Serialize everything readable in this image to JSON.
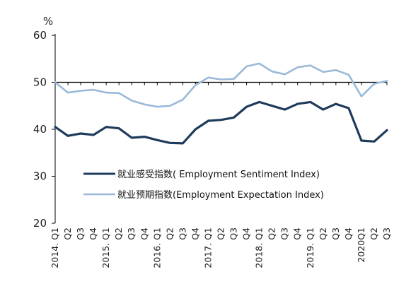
{
  "chart_data": {
    "type": "line",
    "ylabel": "%",
    "ylim": [
      20,
      60
    ],
    "yticks": [
      20,
      30,
      40,
      50,
      60
    ],
    "reference_line": 50,
    "categories": [
      "2014. Q1",
      "Q2",
      "Q3",
      "Q4",
      "2015. Q1",
      "Q2",
      "Q3",
      "Q4",
      "2016. Q1",
      "Q2",
      "Q3",
      "Q4",
      "2017. Q1",
      "Q2",
      "Q3",
      "Q4",
      "2018. Q1",
      "Q2",
      "Q3",
      "Q4",
      "2019. Q1",
      "Q2",
      "Q3",
      "Q4",
      "2020Q1",
      "Q2",
      "Q3"
    ],
    "legend_position": "center-left",
    "series": [
      {
        "name": "就业感受指数( Employment Sentiment Index)",
        "color": "#1f3b5c",
        "values": [
          40.5,
          38.6,
          39.1,
          38.8,
          40.5,
          40.2,
          38.2,
          38.4,
          37.7,
          37.1,
          37.0,
          40.0,
          41.8,
          42.0,
          42.5,
          44.8,
          45.8,
          45.0,
          44.2,
          45.4,
          45.8,
          44.2,
          45.4,
          44.5,
          37.6,
          37.4,
          39.8
        ]
      },
      {
        "name": "就业预期指数(Employment Expectation Index)",
        "color": "#9ab9d9",
        "values": [
          50.0,
          47.8,
          48.2,
          48.4,
          47.8,
          47.7,
          46.1,
          45.3,
          44.8,
          45.0,
          46.3,
          49.4,
          51.0,
          50.6,
          50.7,
          53.4,
          54.0,
          52.3,
          51.7,
          53.2,
          53.6,
          52.2,
          52.6,
          51.6,
          47.0,
          49.7,
          50.3
        ]
      }
    ]
  }
}
